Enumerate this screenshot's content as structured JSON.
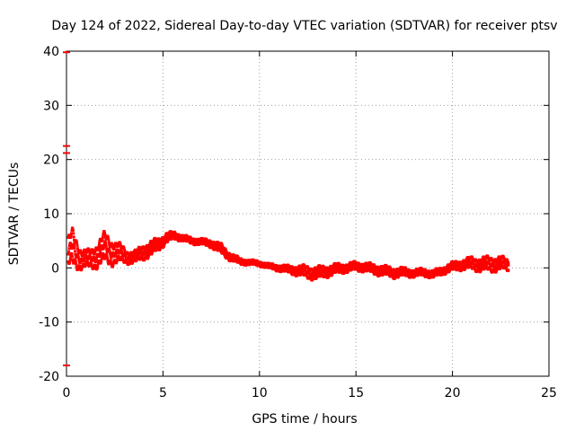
{
  "chart_data": {
    "type": "scatter",
    "title": "Day 124 of 2022, Sidereal Day-to-day VTEC variation (SDTVAR) for receiver ptsv",
    "xlabel": "GPS time / hours",
    "ylabel": "SDTVAR / TECUs",
    "xlim": [
      0,
      25
    ],
    "ylim": [
      -20,
      40
    ],
    "xticks": [
      0,
      5,
      10,
      15,
      20,
      25
    ],
    "yticks": [
      -20,
      -10,
      0,
      10,
      20,
      30,
      40
    ],
    "grid": true,
    "legend": "none",
    "series": [
      {
        "name": "SDTVAR",
        "color": "#ff0000",
        "band_x": [
          0.1,
          0.3,
          0.5,
          0.8,
          1.2,
          1.6,
          2.0,
          2.4,
          2.8,
          3.2,
          3.6,
          4.0,
          4.4,
          4.8,
          5.2,
          5.6,
          6.0,
          6.5,
          7.0,
          7.5,
          8.0,
          8.5,
          9.0,
          9.5,
          10.0,
          10.5,
          11.0,
          11.5,
          12.0,
          12.5,
          13.0,
          13.5,
          14.0,
          14.5,
          15.0,
          15.5,
          16.0,
          16.5,
          17.0,
          17.5,
          18.0,
          18.5,
          19.0,
          19.5,
          20.0,
          20.5,
          21.0,
          21.5,
          22.0,
          22.5,
          22.9
        ],
        "band_center": [
          2.5,
          3.5,
          3.0,
          1.5,
          1.5,
          2.5,
          3.5,
          3.0,
          2.5,
          2.0,
          2.0,
          3.0,
          3.5,
          4.5,
          5.5,
          6.0,
          5.5,
          5.0,
          4.8,
          4.5,
          3.5,
          2.0,
          1.2,
          1.0,
          0.8,
          0.3,
          0.0,
          -0.3,
          -0.5,
          -0.8,
          -1.0,
          -0.6,
          -0.2,
          0.0,
          0.3,
          0.1,
          -0.3,
          -0.6,
          -0.9,
          -0.8,
          -1.0,
          -0.8,
          -1.2,
          -0.5,
          0.2,
          0.6,
          0.8,
          0.6,
          0.7,
          0.8,
          0.5
        ],
        "band_spread": [
          2.5,
          3.0,
          2.5,
          1.5,
          1.5,
          2.0,
          2.5,
          2.0,
          1.5,
          1.0,
          1.0,
          1.2,
          1.2,
          1.0,
          0.8,
          0.6,
          0.5,
          0.5,
          0.5,
          0.6,
          0.8,
          0.6,
          0.5,
          0.4,
          0.4,
          0.4,
          0.5,
          0.6,
          0.8,
          1.0,
          1.0,
          0.9,
          0.8,
          0.7,
          0.7,
          0.7,
          0.8,
          0.8,
          0.8,
          0.7,
          0.6,
          0.6,
          0.6,
          0.6,
          0.7,
          0.8,
          1.0,
          1.1,
          1.2,
          1.1,
          0.9
        ],
        "outliers": [
          [
            0.0,
            22.5
          ],
          [
            0.0,
            21.2
          ],
          [
            0.0,
            -18.0
          ],
          [
            0.0,
            39.8
          ]
        ]
      }
    ]
  }
}
